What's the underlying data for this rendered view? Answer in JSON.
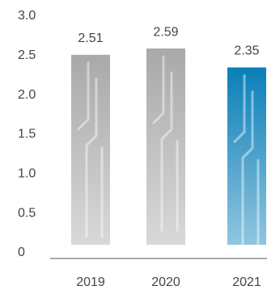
{
  "chart_data": {
    "type": "bar",
    "categories": [
      "2019",
      "2020",
      "2021"
    ],
    "values": [
      2.51,
      2.59,
      2.35
    ],
    "colors": [
      "#a9a9a9",
      "#a9a9a9",
      "#0a7fb8"
    ],
    "label_colors": [
      "#b0b0b0",
      "#b0b0b0",
      "#1a7fb0"
    ],
    "ylim": [
      0,
      3
    ],
    "yticks": [
      0,
      0.5,
      {
        "value": 1,
        "label": "1.0"
      },
      1.5,
      {
        "value": 2,
        "label": "2.0"
      },
      2.5,
      {
        "value": 3,
        "label": "3.0"
      }
    ]
  }
}
